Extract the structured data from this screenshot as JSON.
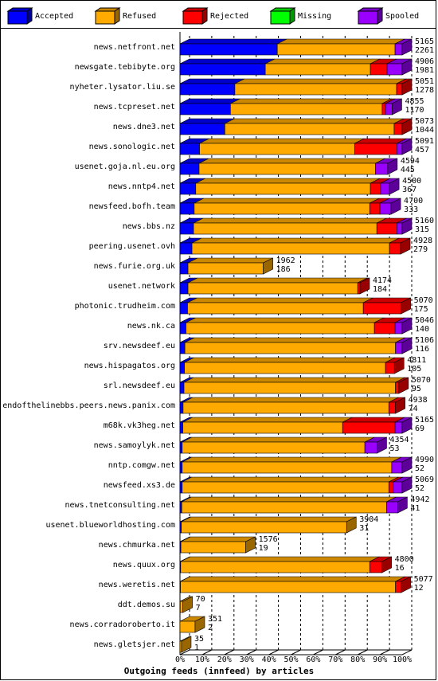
{
  "chart_data": {
    "type": "stacked-bar-3d",
    "title": "Outgoing feeds (innfeed) by articles",
    "categories": [
      "news.netfront.net",
      "newsgate.tebibyte.org",
      "nyheter.lysator.liu.se",
      "news.tcpreset.net",
      "news.dne3.net",
      "news.sonologic.net",
      "usenet.goja.nl.eu.org",
      "news.nntp4.net",
      "newsfeed.bofh.team",
      "news.bbs.nz",
      "peering.usenet.ovh",
      "news.furie.org.uk",
      "usenet.network",
      "photonic.trudheim.com",
      "news.nk.ca",
      "srv.newsdeef.eu",
      "news.hispagatos.org",
      "srl.newsdeef.eu",
      "endofthelinebbs.peers.news.panix.com",
      "m68k.vk3heg.net",
      "news.samoylyk.net",
      "nntp.comgw.net",
      "newsfeed.xs3.de",
      "news.tnetconsulting.net",
      "usenet.blueworldhosting.com",
      "news.chmurka.net",
      "news.quux.org",
      "news.weretis.net",
      "ddt.demos.su",
      "news.corradoroberto.it",
      "news.gletsjer.net"
    ],
    "offered": [
      5165,
      4906,
      5051,
      4855,
      5073,
      5091,
      4594,
      4500,
      4700,
      5160,
      4928,
      1962,
      4174,
      5070,
      5046,
      5106,
      4811,
      5070,
      4938,
      5165,
      4354,
      4990,
      5069,
      4942,
      3904,
      1576,
      4800,
      5077,
      70,
      351,
      35
    ],
    "accepted": [
      2261,
      1981,
      1278,
      1170,
      1044,
      457,
      445,
      367,
      333,
      315,
      279,
      186,
      184,
      175,
      140,
      116,
      105,
      95,
      74,
      69,
      53,
      52,
      52,
      41,
      31,
      19,
      16,
      12,
      7,
      2,
      1
    ],
    "series": [
      {
        "name": "Accepted",
        "color": "#0000ff",
        "values": [
          43.8,
          38.4,
          24.7,
          22.7,
          20.2,
          8.8,
          8.6,
          7.1,
          6.4,
          6.1,
          5.4,
          3.6,
          3.6,
          3.4,
          2.7,
          2.2,
          2.0,
          1.8,
          1.4,
          1.3,
          1.0,
          1.0,
          1.0,
          0.8,
          0.6,
          0.4,
          0.3,
          0.2,
          0.1,
          0,
          0
        ]
      },
      {
        "name": "Refused",
        "color": "#ffaa00",
        "values": [
          53,
          47.3,
          72.8,
          68.3,
          76.2,
          69.8,
          79.4,
          78.6,
          79,
          82.5,
          88.9,
          33.9,
          76.4,
          79.1,
          84.8,
          94.8,
          90.5,
          95.2,
          92.6,
          71.9,
          82.2,
          94.3,
          93,
          92.2,
          74.4,
          29.2,
          85.1,
          96.8,
          1.2,
          6.8,
          0.7
        ]
      },
      {
        "name": "Rejected",
        "color": "#ff0000",
        "values": [
          0,
          7.5,
          2.5,
          1.5,
          3.6,
          19,
          0,
          4.6,
          4.6,
          9,
          5,
          0,
          1,
          17,
          9.3,
          0,
          4,
          1.5,
          3,
          23.6,
          0,
          0,
          2,
          0,
          0,
          0,
          5.5,
          2.5,
          0,
          0,
          0
        ]
      },
      {
        "name": "Missing",
        "color": "#00ff00",
        "values": [
          0,
          0,
          0,
          0,
          0,
          0,
          0,
          0,
          0,
          0,
          0,
          0,
          0,
          0,
          0,
          0,
          0,
          0,
          0,
          0,
          0,
          0,
          0,
          0,
          0,
          0,
          0,
          0,
          0,
          0,
          0
        ]
      },
      {
        "name": "Spooled",
        "color": "#9900ff",
        "values": [
          3.2,
          6.8,
          0,
          3,
          0,
          2.4,
          5.5,
          4,
          5,
          2.4,
          0,
          0,
          0,
          0,
          3.2,
          3,
          0,
          0,
          0,
          3.2,
          5.5,
          4.7,
          4,
          5,
          0,
          0,
          0,
          0,
          0,
          0,
          0
        ]
      }
    ],
    "xlim": [
      0,
      100
    ],
    "xticks": [
      {
        "value": 0,
        "label": "0%"
      },
      {
        "value": 10,
        "label": "10%"
      },
      {
        "value": 20,
        "label": "20%"
      },
      {
        "value": 30,
        "label": "30%"
      },
      {
        "value": 40,
        "label": "40%"
      },
      {
        "value": 50,
        "label": "50%"
      },
      {
        "value": 60,
        "label": "60%"
      },
      {
        "value": 70,
        "label": "70%"
      },
      {
        "value": 80,
        "label": "80%"
      },
      {
        "value": 90,
        "label": "90%"
      },
      {
        "value": 100,
        "label": "100%"
      }
    ],
    "grid": true
  }
}
